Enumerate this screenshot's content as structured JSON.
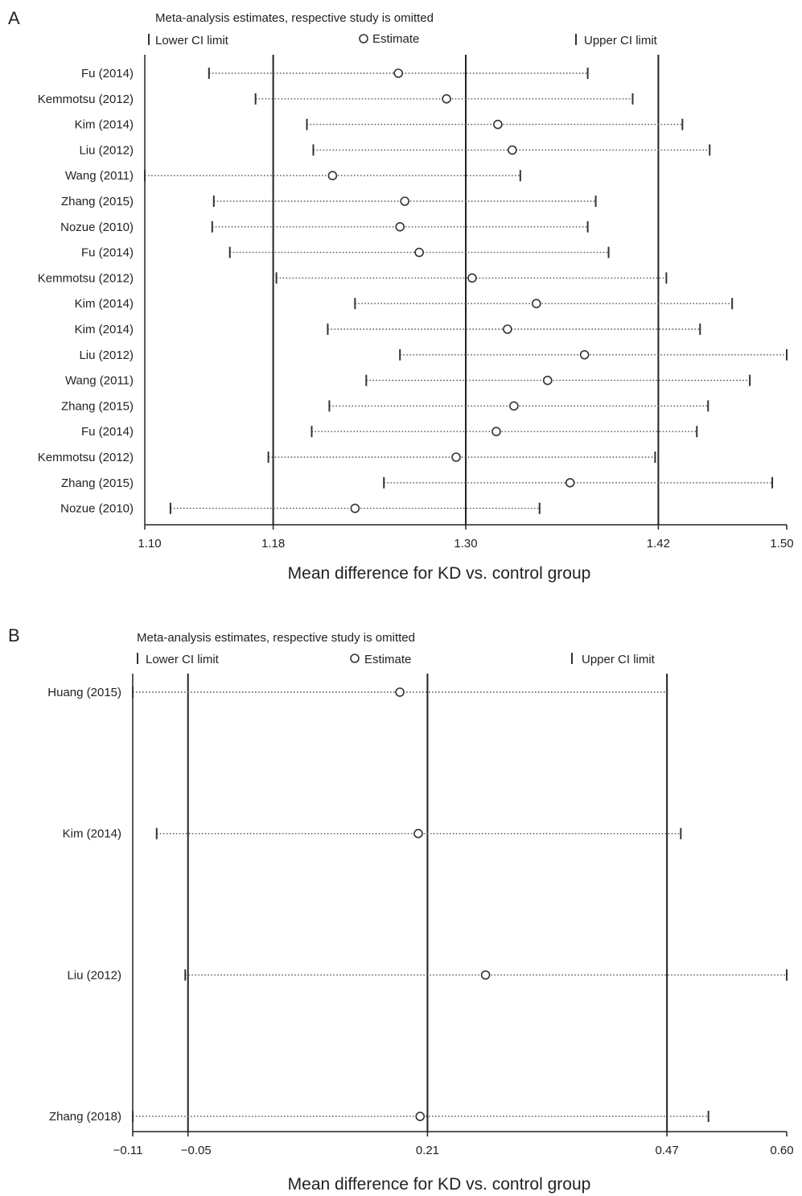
{
  "chart_data": [
    {
      "type": "sensitivity-forest",
      "panel_label": "A",
      "title": "Meta-analysis estimates,  respective study is omitted",
      "legend": {
        "lower": "Lower CI limit",
        "estimate": "Estimate",
        "upper": "Upper CI limit"
      },
      "xlabel": "Mean difference for KD vs. control group",
      "xlim": [
        1.1,
        1.5
      ],
      "xticks": [
        1.1,
        1.18,
        1.3,
        1.42,
        1.5
      ],
      "xtick_labels": [
        "1.10",
        "1.18",
        "1.30",
        "1.42",
        "1.50"
      ],
      "reference_lines": [
        1.18,
        1.3,
        1.42
      ],
      "rows": [
        {
          "study": "Fu (2014)",
          "lower": 1.14,
          "estimate": 1.258,
          "upper": 1.376
        },
        {
          "study": "Kemmotsu (2012)",
          "lower": 1.169,
          "estimate": 1.288,
          "upper": 1.404
        },
        {
          "study": "Kim (2014)",
          "lower": 1.201,
          "estimate": 1.32,
          "upper": 1.435
        },
        {
          "study": "Liu (2012)",
          "lower": 1.205,
          "estimate": 1.329,
          "upper": 1.452
        },
        {
          "study": "Wang (2011)",
          "lower": 1.1,
          "estimate": 1.217,
          "upper": 1.334
        },
        {
          "study": "Zhang (2015)",
          "lower": 1.143,
          "estimate": 1.262,
          "upper": 1.381
        },
        {
          "study": "Nozue (2010)",
          "lower": 1.142,
          "estimate": 1.259,
          "upper": 1.376
        },
        {
          "study": "Fu (2014)",
          "lower": 1.153,
          "estimate": 1.271,
          "upper": 1.389
        },
        {
          "study": "Kemmotsu (2012)",
          "lower": 1.182,
          "estimate": 1.304,
          "upper": 1.425
        },
        {
          "study": "Kim (2014)",
          "lower": 1.231,
          "estimate": 1.344,
          "upper": 1.466
        },
        {
          "study": "Kim (2014)",
          "lower": 1.214,
          "estimate": 1.326,
          "upper": 1.446
        },
        {
          "study": "Liu (2012)",
          "lower": 1.259,
          "estimate": 1.374,
          "upper": 1.5
        },
        {
          "study": "Wang (2011)",
          "lower": 1.238,
          "estimate": 1.351,
          "upper": 1.477
        },
        {
          "study": "Zhang (2015)",
          "lower": 1.215,
          "estimate": 1.33,
          "upper": 1.451
        },
        {
          "study": "Fu (2014)",
          "lower": 1.204,
          "estimate": 1.319,
          "upper": 1.444
        },
        {
          "study": "Kemmotsu (2012)",
          "lower": 1.177,
          "estimate": 1.294,
          "upper": 1.418
        },
        {
          "study": "Zhang (2015)",
          "lower": 1.249,
          "estimate": 1.365,
          "upper": 1.491
        },
        {
          "study": "Nozue (2010)",
          "lower": 1.116,
          "estimate": 1.231,
          "upper": 1.346
        }
      ]
    },
    {
      "type": "sensitivity-forest",
      "panel_label": "B",
      "title": "Meta-analysis estimates,  respective study is omitted",
      "legend": {
        "lower": "Lower CI limit",
        "estimate": "Estimate",
        "upper": "Upper CI limit"
      },
      "xlabel": "Mean difference for KD vs. control group",
      "xlim": [
        -0.11,
        0.6
      ],
      "xticks": [
        -0.11,
        -0.05,
        0.21,
        0.47,
        0.6
      ],
      "xtick_labels": [
        "−0.11",
        "−0.05",
        "0.21",
        "0.47",
        "0.60"
      ],
      "reference_lines": [
        -0.05,
        0.21,
        0.47
      ],
      "rows": [
        {
          "study": "Huang (2015)",
          "lower": -0.11,
          "estimate": 0.18,
          "upper": 0.47
        },
        {
          "study": "Kim (2014)",
          "lower": -0.084,
          "estimate": 0.2,
          "upper": 0.485
        },
        {
          "study": "Liu (2012)",
          "lower": -0.053,
          "estimate": 0.273,
          "upper": 0.6
        },
        {
          "study": "Zhang (2018)",
          "lower": -0.11,
          "estimate": 0.202,
          "upper": 0.515
        }
      ]
    }
  ]
}
